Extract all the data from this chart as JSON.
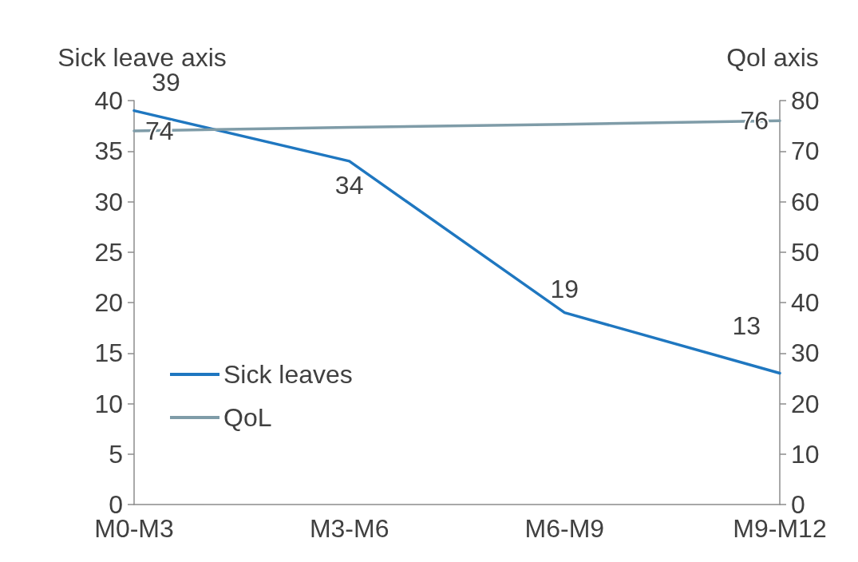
{
  "chart_data": {
    "type": "line",
    "ylabel": "Sick leave axis",
    "y2label": "Qol axis",
    "categories": [
      "M0-M3",
      "M3-M6",
      "M6-M9",
      "M9-M12"
    ],
    "series": [
      {
        "name": "Sick leaves",
        "color": "#1f77c0",
        "values": [
          39,
          34,
          19,
          13
        ],
        "value_labels": [
          "39",
          "34",
          "19",
          "13"
        ]
      },
      {
        "name": "QoL",
        "color": "#7f9ca8",
        "axis": "y2",
        "values": [
          74,
          74.7,
          75.3,
          76
        ],
        "value_labels": [
          "74",
          null,
          null,
          "76"
        ]
      }
    ],
    "ylim": [
      0,
      40
    ],
    "yticks": [
      0,
      5,
      10,
      15,
      20,
      25,
      30,
      35,
      40
    ],
    "y2lim": [
      0,
      80
    ],
    "y2ticks": [
      0,
      10,
      20,
      30,
      40,
      50,
      60,
      70,
      80
    ],
    "legend": "bottom left",
    "grid": false,
    "marker": "none",
    "line_style": "solid"
  }
}
